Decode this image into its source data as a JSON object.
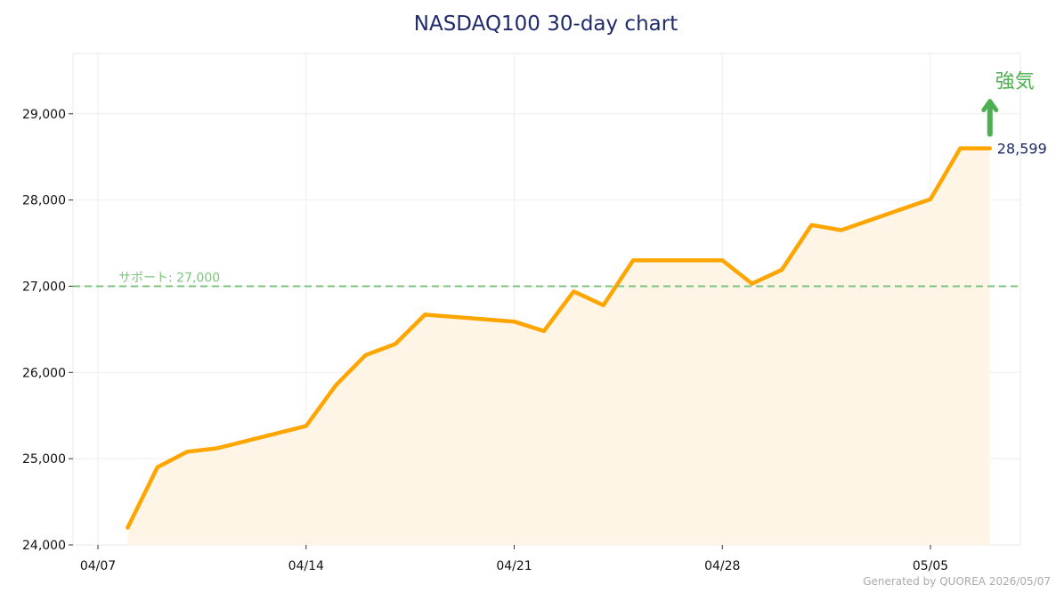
{
  "chart_data": {
    "type": "line",
    "title": "NASDAQ100  30-day chart",
    "xlabel": "",
    "ylabel": "",
    "dates": [
      "04/08",
      "04/09",
      "04/10",
      "04/11",
      "04/14",
      "04/15",
      "04/16",
      "04/17",
      "04/18",
      "04/21",
      "04/22",
      "04/23",
      "04/24",
      "04/25",
      "04/28",
      "04/29",
      "04/30",
      "05/01",
      "05/02",
      "05/05",
      "05/06",
      "05/07"
    ],
    "values": [
      24200,
      24900,
      25080,
      25120,
      25380,
      25850,
      26200,
      26330,
      26670,
      26590,
      26480,
      26940,
      26780,
      27300,
      27300,
      27030,
      27190,
      27710,
      27650,
      28010,
      28599,
      28599
    ],
    "x_ticks": [
      "04/07",
      "04/14",
      "04/21",
      "04/28",
      "05/05"
    ],
    "y_ticks": [
      "24,000",
      "25,000",
      "26,000",
      "27,000",
      "28,000",
      "29,000"
    ],
    "ylim": [
      24000,
      29700
    ],
    "grid": true,
    "line_color": "#ffa500",
    "fill_color": "#fff5e6",
    "support": {
      "value": 27000,
      "label": "サポート: 27,000",
      "color": "#7cc47c"
    },
    "last_value_label": "28,599",
    "signal": {
      "label": "強気",
      "direction": "up",
      "color": "#4caf50"
    }
  },
  "footer": {
    "generated_text": "Generated by QUOREA  2026/05/07"
  },
  "colors": {
    "title": "#1f2a6b",
    "label": "#1f2a6b",
    "grid": "#eeeeee"
  }
}
